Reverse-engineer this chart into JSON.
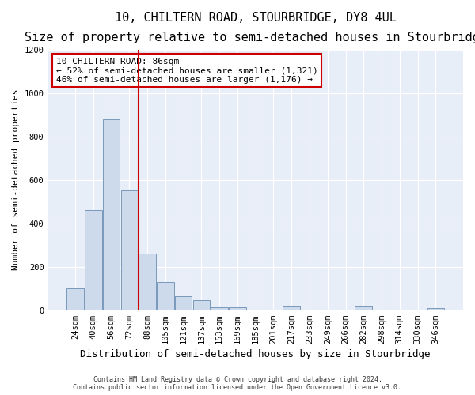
{
  "title": "10, CHILTERN ROAD, STOURBRIDGE, DY8 4UL",
  "subtitle": "Size of property relative to semi-detached houses in Stourbridge",
  "xlabel": "Distribution of semi-detached houses by size in Stourbridge",
  "ylabel": "Number of semi-detached properties",
  "categories": [
    "24sqm",
    "40sqm",
    "56sqm",
    "72sqm",
    "88sqm",
    "105sqm",
    "121sqm",
    "137sqm",
    "153sqm",
    "169sqm",
    "185sqm",
    "201sqm",
    "217sqm",
    "233sqm",
    "249sqm",
    "266sqm",
    "282sqm",
    "298sqm",
    "314sqm",
    "330sqm",
    "346sqm"
  ],
  "values": [
    100,
    460,
    880,
    550,
    260,
    130,
    65,
    45,
    15,
    15,
    0,
    0,
    20,
    0,
    0,
    0,
    20,
    0,
    0,
    0,
    10
  ],
  "bar_color": "#ccdaeb",
  "bar_edge_color": "#7799bb",
  "vline_color": "#cc0000",
  "annotation_text": "10 CHILTERN ROAD: 86sqm\n← 52% of semi-detached houses are smaller (1,321)\n46% of semi-detached houses are larger (1,176) →",
  "annotation_box_color": "#ffffff",
  "annotation_box_edge": "#cc0000",
  "footnote1": "Contains HM Land Registry data © Crown copyright and database right 2024.",
  "footnote2": "Contains public sector information licensed under the Open Government Licence v3.0.",
  "ylim": [
    0,
    1200
  ],
  "yticks": [
    0,
    200,
    400,
    600,
    800,
    1000,
    1200
  ],
  "background_color": "#e8eef8",
  "grid_color": "#ffffff",
  "title_fontsize": 11,
  "subtitle_fontsize": 9.5,
  "ylabel_fontsize": 8,
  "xlabel_fontsize": 9,
  "tick_fontsize": 7.5,
  "annotation_fontsize": 8
}
